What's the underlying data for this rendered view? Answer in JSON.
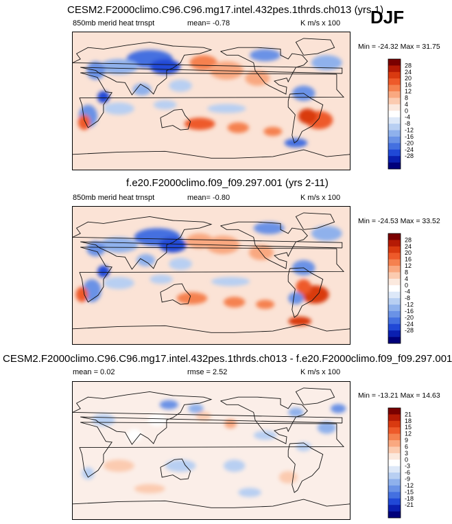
{
  "season": "DJF",
  "panels": [
    {
      "title": "CESM2.F2000climo.C96.C96.mg17.intel.432pes.1thrds.ch013 (yrs 1)",
      "variable": "850mb merid heat trnspt",
      "stat1": "mean=  -0.78",
      "stat2": "",
      "units": "K m/s x 100",
      "minmax": "Min = -24.32  Max =  31.75"
    },
    {
      "title": "f.e20.F2000climo.f09_f09.297.001 (yrs 2-11)",
      "variable": "850mb merid heat trnspt",
      "stat1": "mean=  -0.80",
      "stat2": "",
      "units": "K m/s x 100",
      "minmax": "Min = -24.53  Max =  33.52"
    },
    {
      "title": "CESM2.F2000climo.C96.C96.mg17.intel.432pes.1thrds.ch013 - f.e20.F2000climo.f09_f09.297.001",
      "variable": "",
      "stat1": "mean =   0.02",
      "stat2": "rmse =   2.52",
      "units": "K m/s x 100",
      "minmax": "Min = -13.21  Max =  14.63"
    }
  ],
  "chart_data": [
    {
      "type": "heatmap",
      "title": "CESM2.F2000climo.C96.C96.mg17.intel.432pes.1thrds.ch013 (yrs 1)",
      "variable": "850mb merid heat trnspt",
      "units": "K m/s x 100",
      "mean": -0.78,
      "min": -24.32,
      "max": 31.75,
      "colorbar_levels": [
        28,
        24,
        20,
        16,
        12,
        8,
        4,
        0,
        -4,
        -8,
        -12,
        -16,
        -20,
        -24,
        -28
      ]
    },
    {
      "type": "heatmap",
      "title": "f.e20.F2000climo.f09_f09.297.001 (yrs 2-11)",
      "variable": "850mb merid heat trnspt",
      "units": "K m/s x 100",
      "mean": -0.8,
      "min": -24.53,
      "max": 33.52,
      "colorbar_levels": [
        28,
        24,
        20,
        16,
        12,
        8,
        4,
        0,
        -4,
        -8,
        -12,
        -16,
        -20,
        -24,
        -28
      ]
    },
    {
      "type": "heatmap",
      "title": "CESM2.F2000climo.C96.C96.mg17.intel.432pes.1thrds.ch013 - f.e20.F2000climo.f09_f09.297.001",
      "units": "K m/s x 100",
      "mean": 0.02,
      "rmse": 2.52,
      "min": -13.21,
      "max": 14.63,
      "colorbar_levels": [
        21,
        18,
        15,
        12,
        9,
        6,
        3,
        0,
        -3,
        -6,
        -9,
        -12,
        -15,
        -18,
        -21
      ]
    }
  ],
  "colors": {
    "palette": [
      "#7a0000",
      "#b51a05",
      "#d93a10",
      "#ee5a2a",
      "#f5814f",
      "#f9a880",
      "#fbcbb0",
      "#fbe9de",
      "#ffffff",
      "#dde8f8",
      "#b8cff2",
      "#8fb1ec",
      "#6a92e6",
      "#4470e0",
      "#2048d6",
      "#0a1fb0",
      "#00007a"
    ],
    "background": "#fbeee8"
  }
}
